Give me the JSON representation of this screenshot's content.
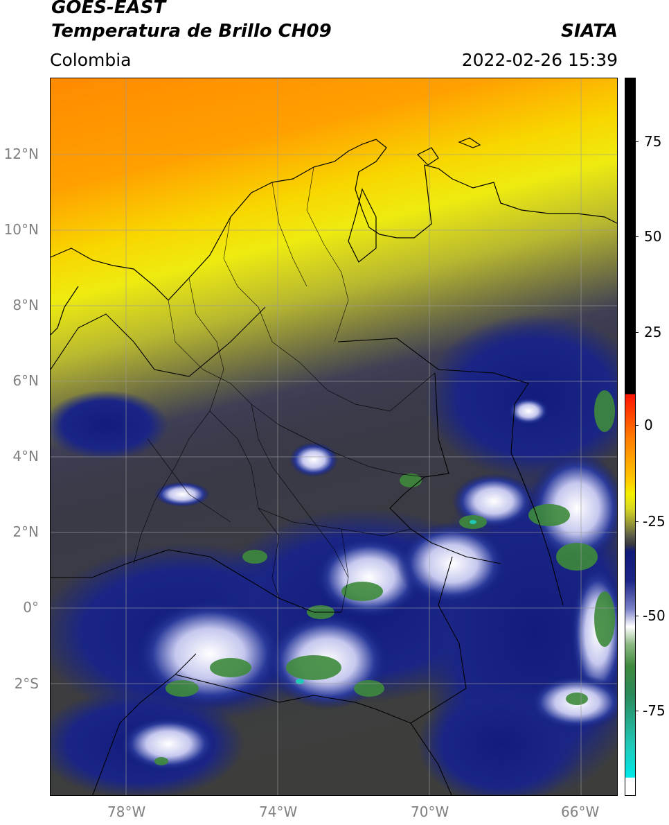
{
  "header": {
    "satellite": "GOES-EAST",
    "product": "Temperatura de Brillo CH09",
    "region": "Colombia",
    "org": "SIATA",
    "datetime": "2022-02-26 15:39"
  },
  "axes": {
    "lat_labels": [
      "12°N",
      "10°N",
      "8°N",
      "6°N",
      "4°N",
      "2°N",
      "0°",
      "2°S"
    ],
    "lon_labels": [
      "78°W",
      "74°W",
      "70°W",
      "66°W"
    ],
    "lon_range": [
      -80,
      -65
    ],
    "lat_range": [
      -5,
      14
    ],
    "lat_values": [
      12,
      10,
      8,
      6,
      4,
      2,
      0,
      -2
    ],
    "lon_values": [
      -78,
      -74,
      -70,
      -66
    ],
    "grid": true
  },
  "colorbar": {
    "ticks": [
      "75",
      "50",
      "25",
      "0",
      "-25",
      "-50",
      "-75"
    ],
    "tick_values": [
      75,
      50,
      25,
      0,
      -25,
      -50,
      -75
    ],
    "range": [
      -95,
      90
    ],
    "units": ""
  },
  "colors": {
    "warm": "#ff8c00",
    "yellow": "#f5f000",
    "olive": "#8a8a3a",
    "gray": "#55554a",
    "navy": "#101a78",
    "white": "#ffffff",
    "green": "#3e8a3c",
    "teal": "#20c8b8",
    "red": "#ff1500",
    "black": "#000000"
  }
}
